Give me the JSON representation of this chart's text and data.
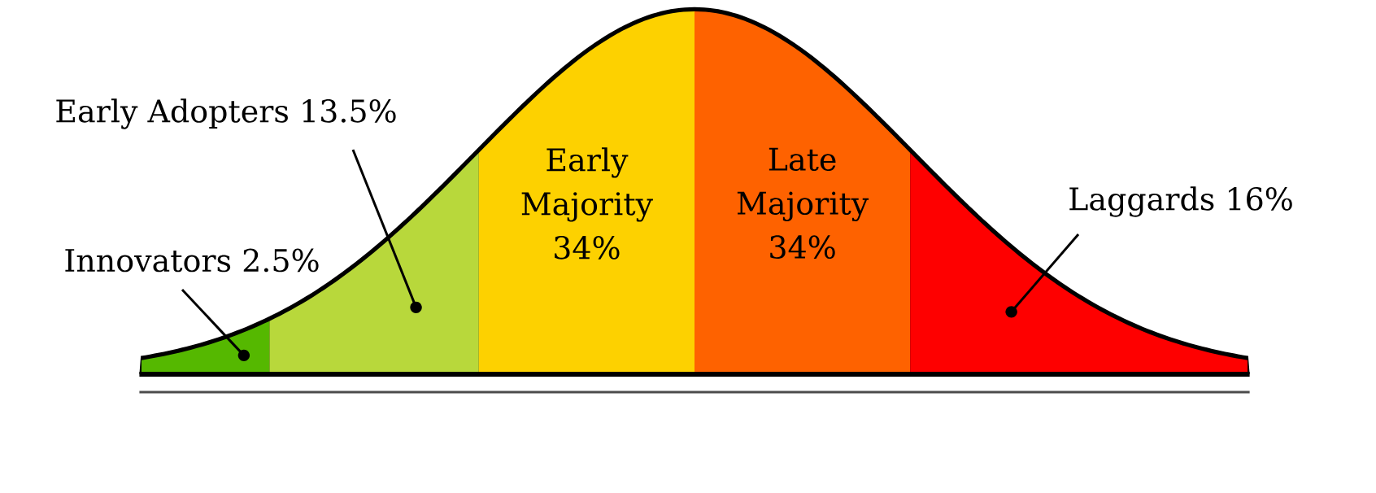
{
  "chart_data": {
    "type": "other",
    "categories": [
      "Innovators",
      "Early Adopters",
      "Early Majority",
      "Late Majority",
      "Laggards"
    ],
    "values": [
      2.5,
      13.5,
      34,
      34,
      16
    ],
    "value_labels": [
      "2.5%",
      "13.5%",
      "34%",
      "34%",
      "16%"
    ],
    "colors": [
      "#55b800",
      "#b8d83b",
      "#fdd100",
      "#fe6200",
      "#fe0000"
    ]
  }
}
